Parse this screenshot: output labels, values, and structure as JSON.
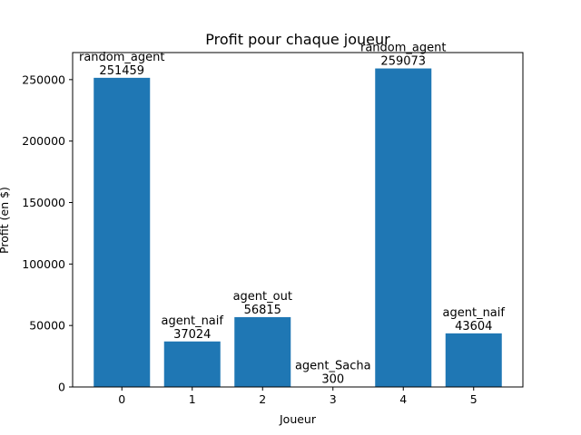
{
  "chart_data": {
    "type": "bar",
    "title": "Profit pour chaque joueur",
    "xlabel": "Joueur",
    "ylabel": "Profit (en $)",
    "categories": [
      "0",
      "1",
      "2",
      "3",
      "4",
      "5"
    ],
    "values": [
      251459,
      37024,
      56815,
      300,
      259073,
      43604
    ],
    "bar_names": [
      "random_agent",
      "agent_naif",
      "agent_out",
      "agent_Sacha",
      "random_agent",
      "agent_naif"
    ],
    "y_ticks": [
      0,
      50000,
      100000,
      150000,
      200000,
      250000
    ],
    "ylim": [
      0,
      272000
    ],
    "xlim": [
      -0.7,
      5.7
    ],
    "grid": false,
    "bar_color": "#1f77b4"
  }
}
